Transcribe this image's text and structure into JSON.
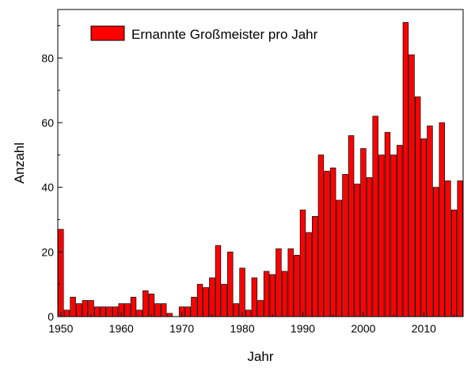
{
  "chart_data": {
    "type": "bar",
    "xlabel": "Jahr",
    "ylabel": "Anzahl",
    "legend": [
      "Ernannte Großmeister pro Jahr"
    ],
    "legend_position": "top-left",
    "xlim": [
      1949.5,
      2016.5
    ],
    "ylim": [
      0,
      95
    ],
    "xticks": [
      1950,
      1960,
      1970,
      1980,
      1990,
      2000,
      2010
    ],
    "yticks": [
      0,
      20,
      40,
      60,
      80
    ],
    "grid": false,
    "colors": {
      "bar_fill": "#ff0000",
      "bar_stroke": "#000000"
    },
    "series": [
      {
        "name": "Ernannte Großmeister pro Jahr",
        "x": [
          1950,
          1951,
          1952,
          1953,
          1954,
          1955,
          1956,
          1957,
          1958,
          1959,
          1960,
          1961,
          1962,
          1963,
          1964,
          1965,
          1966,
          1967,
          1968,
          1969,
          1970,
          1971,
          1972,
          1973,
          1974,
          1975,
          1976,
          1977,
          1978,
          1979,
          1980,
          1981,
          1982,
          1983,
          1984,
          1985,
          1986,
          1987,
          1988,
          1989,
          1990,
          1991,
          1992,
          1993,
          1994,
          1995,
          1996,
          1997,
          1998,
          1999,
          2000,
          2001,
          2002,
          2003,
          2004,
          2005,
          2006,
          2007,
          2008,
          2009,
          2010,
          2011,
          2012,
          2013,
          2014,
          2015,
          2016
        ],
        "values": [
          27,
          2,
          6,
          4,
          5,
          5,
          3,
          3,
          3,
          3,
          4,
          4,
          6,
          2,
          8,
          7,
          4,
          4,
          1,
          0,
          3,
          3,
          6,
          10,
          9,
          12,
          22,
          10,
          20,
          4,
          15,
          2,
          12,
          5,
          14,
          13,
          21,
          14,
          21,
          19,
          33,
          26,
          31,
          50,
          45,
          46,
          36,
          44,
          56,
          41,
          52,
          43,
          62,
          50,
          57,
          50,
          53,
          91,
          81,
          68,
          55,
          59,
          40,
          60,
          42,
          33,
          42
        ]
      }
    ]
  }
}
